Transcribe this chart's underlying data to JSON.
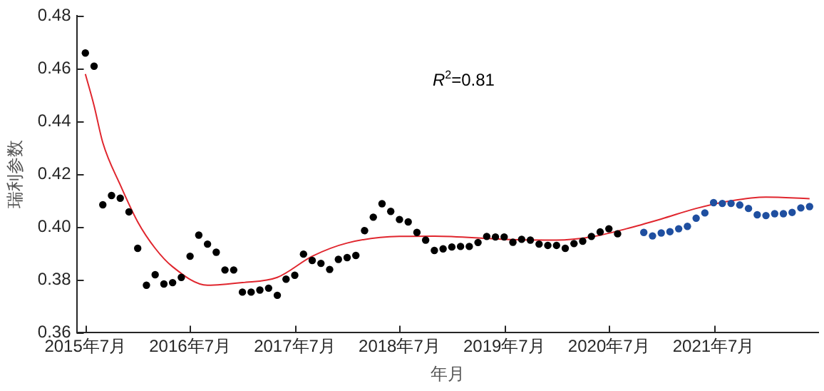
{
  "chart_data": {
    "type": "scatter",
    "xlabel": "年月",
    "ylabel": "瑞利参数",
    "annotations": [
      "R$^{2}$=0.81"
    ],
    "xlim": [
      "2015-06",
      "2022-07"
    ],
    "ylim": [
      0.36,
      0.48
    ],
    "yticks": [
      0.36,
      0.38,
      {
        "value": 0.4,
        "label": "0.40"
      },
      0.42,
      0.44,
      0.46,
      0.48
    ],
    "xticks": [
      {
        "value": "2015-07",
        "label": "2015年7月"
      },
      {
        "value": "2016-07",
        "label": "2016年7月"
      },
      {
        "value": "2017-07",
        "label": "2017年7月"
      },
      {
        "value": "2018-07",
        "label": "2018年7月"
      },
      {
        "value": "2019-07",
        "label": "2019年7月"
      },
      {
        "value": "2020-07",
        "label": "2020年7月"
      },
      {
        "value": "2021-07",
        "label": "2021年7月"
      }
    ],
    "grid": false,
    "legend": false,
    "marker": "circle",
    "series": [
      {
        "color": "#000000",
        "x": [
          "2015-07",
          "2015-08",
          "2015-09",
          "2015-10",
          "2015-11",
          "2015-12",
          "2016-01",
          "2016-02",
          "2016-03",
          "2016-04",
          "2016-05",
          "2016-06",
          "2016-07",
          "2016-08",
          "2016-09",
          "2016-10",
          "2016-11",
          "2016-12",
          "2017-01",
          "2017-02",
          "2017-03",
          "2017-04",
          "2017-05",
          "2017-06",
          "2017-07",
          "2017-08",
          "2017-09",
          "2017-10",
          "2017-11",
          "2017-12",
          "2018-01",
          "2018-02",
          "2018-03",
          "2018-04",
          "2018-05",
          "2018-06",
          "2018-07",
          "2018-08",
          "2018-09",
          "2018-10",
          "2018-11",
          "2018-12",
          "2019-01",
          "2019-02",
          "2019-03",
          "2019-04",
          "2019-05",
          "2019-06",
          "2019-07",
          "2019-08",
          "2019-09",
          "2019-10",
          "2019-11",
          "2019-12",
          "2020-01",
          "2020-02",
          "2020-03",
          "2020-04",
          "2020-05",
          "2020-06",
          "2020-07",
          "2020-08"
        ],
        "values": [
          0.466,
          0.461,
          0.4085,
          0.412,
          0.411,
          0.4058,
          0.392,
          0.378,
          0.382,
          0.3785,
          0.379,
          0.381,
          0.389,
          0.397,
          0.3936,
          0.3905,
          0.3838,
          0.3838,
          0.3754,
          0.3754,
          0.3762,
          0.3769,
          0.3742,
          0.3803,
          0.3818,
          0.3898,
          0.3874,
          0.3863,
          0.384,
          0.3878,
          0.3885,
          0.3893,
          0.3987,
          0.4038,
          0.4089,
          0.406,
          0.4029,
          0.402,
          0.398,
          0.3951,
          0.3912,
          0.3918,
          0.3925,
          0.3927,
          0.3927,
          0.3942,
          0.3965,
          0.3963,
          0.3963,
          0.3943,
          0.3954,
          0.3951,
          0.3936,
          0.3931,
          0.3931,
          0.392,
          0.3938,
          0.3947,
          0.3965,
          0.3982,
          0.3994,
          0.3975
        ]
      },
      {
        "color": "#1f4fa0",
        "x": [
          "2020-11",
          "2020-12",
          "2021-01",
          "2021-02",
          "2021-03",
          "2021-04",
          "2021-05",
          "2021-06",
          "2021-07",
          "2021-08",
          "2021-09",
          "2021-10",
          "2021-11",
          "2021-12",
          "2022-01",
          "2022-02",
          "2022-03",
          "2022-04",
          "2022-05",
          "2022-06"
        ],
        "values": [
          0.398,
          0.3967,
          0.3978,
          0.3983,
          0.3994,
          0.4003,
          0.4034,
          0.4054,
          0.4093,
          0.409,
          0.409,
          0.4084,
          0.4071,
          0.4047,
          0.4044,
          0.4051,
          0.4051,
          0.4056,
          0.4073,
          0.4078
        ]
      },
      {
        "type": "line",
        "color": "#e0262e",
        "line_style": "solid",
        "marker": "none",
        "x": [
          "2015-07",
          "2015-08",
          "2015-09",
          "2015-11",
          "2016-01",
          "2016-03",
          "2016-05",
          "2016-09",
          "2017-01",
          "2017-05",
          "2017-09",
          "2018-01",
          "2018-07",
          "2018-11",
          "2019-07",
          "2020-01",
          "2020-05",
          "2020-09",
          "2021-01",
          "2021-05",
          "2021-09",
          "2022-01",
          "2022-06"
        ],
        "values": [
          0.458,
          0.446,
          0.432,
          0.416,
          0.402,
          0.392,
          0.385,
          0.378,
          0.379,
          0.381,
          0.389,
          0.394,
          0.3965,
          0.3966,
          0.3954,
          0.3951,
          0.3963,
          0.3994,
          0.4031,
          0.4071,
          0.41,
          0.4114,
          0.4108
        ]
      }
    ]
  }
}
